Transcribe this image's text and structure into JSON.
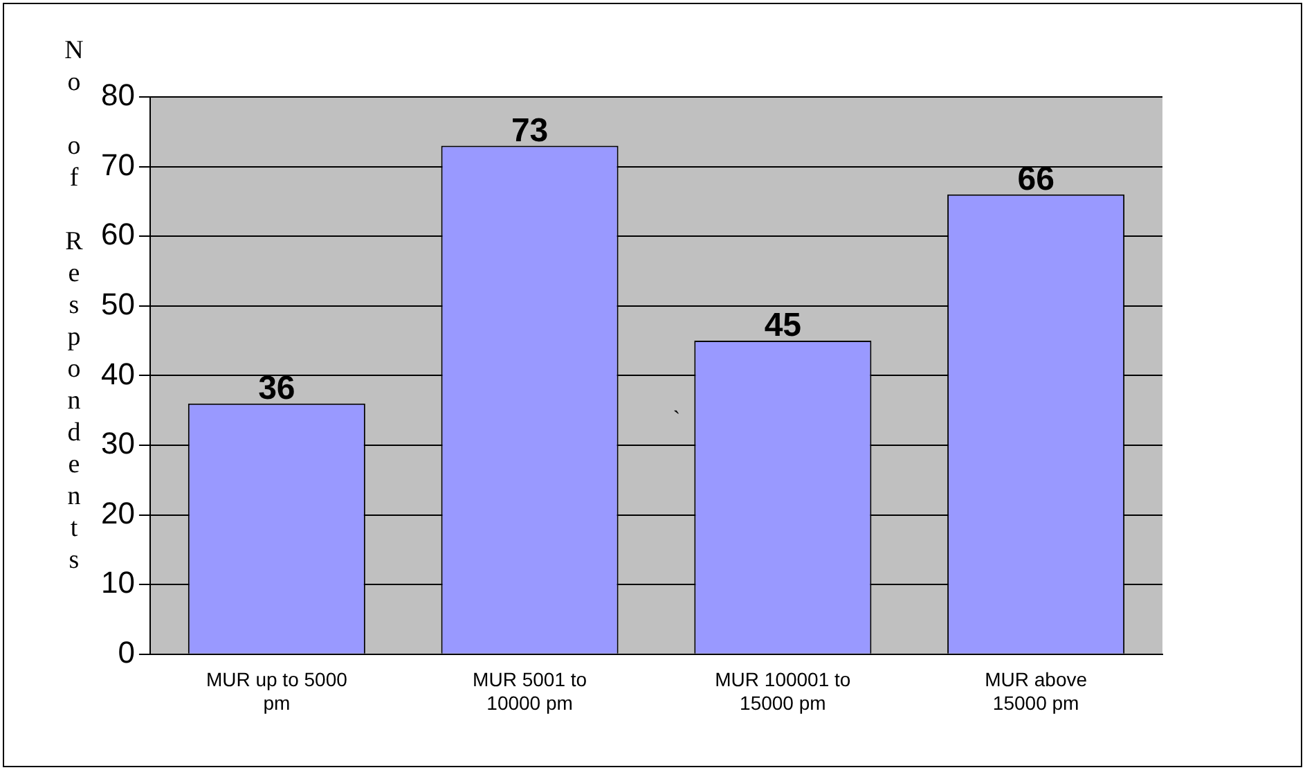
{
  "chart_data": {
    "type": "bar",
    "ylabel": "No of Respondents",
    "categories": [
      "MUR up to 5000 pm",
      "MUR 5001 to 10000 pm",
      "MUR 100001 to 15000 pm",
      "MUR above 15000 pm"
    ],
    "values": [
      36,
      73,
      45,
      66
    ],
    "color": "#9999ff",
    "ylim": [
      0,
      80
    ],
    "yticks": [
      0,
      10,
      20,
      30,
      40,
      50,
      60,
      70,
      80
    ],
    "grid": "y",
    "legend": false,
    "data_labels": true,
    "annotations": [
      "`"
    ]
  }
}
